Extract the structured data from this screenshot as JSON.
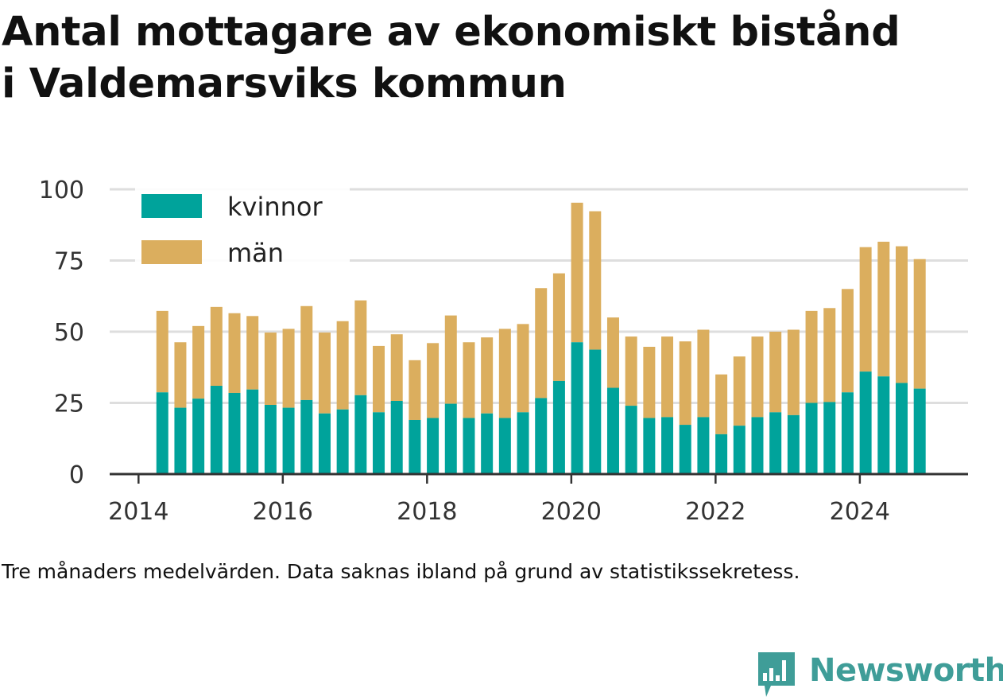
{
  "title_lines": [
    "Antal mottagare av ekonomiskt bistånd",
    "i Valdemarsviks kommun"
  ],
  "caption": "Tre månaders medelvärden. Data saknas ibland på grund av statistikssekretess.",
  "brand": {
    "name": "Newsworthy",
    "icon": "newsworthy-logo-icon",
    "color": "#3f9d98"
  },
  "chart_data": {
    "type": "bar",
    "stacked": true,
    "ylim": [
      0,
      100
    ],
    "yticks": [
      0,
      25,
      50,
      75,
      100
    ],
    "xlim": [
      2013.6,
      2025.5
    ],
    "xticks": [
      2014,
      2016,
      2018,
      2020,
      2022,
      2024
    ],
    "grid": true,
    "legend_position": "top-left",
    "x": [
      2014.33,
      2014.58,
      2014.83,
      2015.08,
      2015.33,
      2015.58,
      2015.83,
      2016.08,
      2016.33,
      2016.58,
      2016.83,
      2017.08,
      2017.33,
      2017.58,
      2017.83,
      2018.08,
      2018.33,
      2018.58,
      2018.83,
      2019.08,
      2019.33,
      2019.58,
      2019.83,
      2020.08,
      2020.33,
      2020.58,
      2020.83,
      2021.08,
      2021.33,
      2021.58,
      2021.83,
      2022.08,
      2022.33,
      2022.58,
      2022.83,
      2023.08,
      2023.33,
      2023.58,
      2023.83,
      2024.08,
      2024.33,
      2024.58,
      2024.83
    ],
    "series": [
      {
        "name": "kvinnor",
        "color": "#00a39b",
        "values": [
          28.7,
          23.3,
          26.5,
          31.0,
          28.5,
          29.7,
          24.3,
          23.3,
          26.0,
          21.3,
          22.7,
          27.7,
          21.7,
          25.7,
          19.0,
          19.7,
          24.7,
          19.7,
          21.3,
          19.7,
          21.7,
          26.7,
          32.7,
          46.3,
          43.7,
          30.3,
          24.0,
          19.7,
          20.0,
          17.3,
          20.0,
          14.0,
          17.0,
          20.0,
          21.7,
          20.7,
          25.0,
          25.3,
          28.7,
          36.0,
          34.3,
          32.0,
          30.0
        ]
      },
      {
        "name": "män",
        "color": "#dbae5e",
        "values": [
          28.6,
          23.0,
          25.5,
          27.7,
          28.0,
          25.8,
          25.4,
          27.7,
          33.0,
          28.4,
          31.0,
          33.3,
          23.3,
          23.4,
          21.0,
          26.3,
          31.0,
          26.6,
          26.7,
          31.3,
          31.0,
          38.6,
          37.8,
          49.0,
          48.6,
          24.7,
          24.3,
          25.0,
          28.3,
          29.3,
          30.7,
          21.0,
          24.3,
          28.3,
          28.3,
          30.0,
          32.3,
          33.0,
          36.3,
          43.7,
          47.3,
          48.0,
          45.5
        ]
      }
    ]
  }
}
